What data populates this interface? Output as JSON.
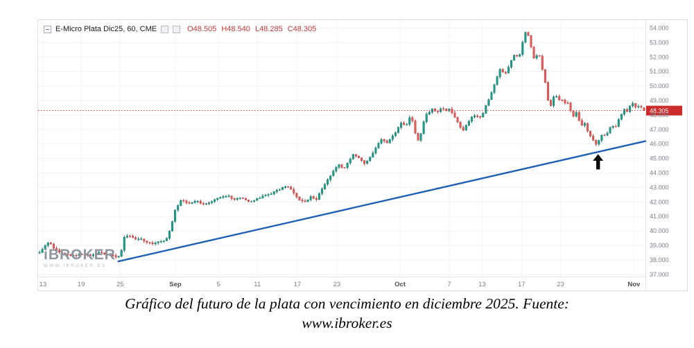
{
  "chart": {
    "legend": {
      "symbol": "E-Micro Plata Dic25, 60, CME",
      "ohlc": [
        {
          "label": "O",
          "value": "48.505"
        },
        {
          "label": "H",
          "value": "48.540"
        },
        {
          "label": "L",
          "value": "48.285"
        },
        {
          "label": "C",
          "value": "48.305"
        }
      ]
    },
    "watermark": {
      "brand": "iBROKER",
      "url": "WWW.IBROKER.ES"
    }
  },
  "caption": {
    "line1": "Gráfico del futuro de la plata con vencimiento en diciembre 2025. Fuente:",
    "line2": "www.ibroker.es"
  },
  "chart_data": {
    "type": "candlestick",
    "title": "E-Micro Plata Dic25, 60, CME",
    "timeframe": "60",
    "exchange": "CME",
    "ylim": [
      36.85,
      54.55
    ],
    "grid": true,
    "current_price": 48.305,
    "current_price_label": "48.305",
    "last_candle": {
      "open": 48.505,
      "high": 48.54,
      "low": 48.285,
      "close": 48.305
    },
    "candle_count": 215,
    "colors": {
      "up": "#1f9d8b",
      "up_border": "#146c5e",
      "down": "#e25b5b",
      "down_border": "#b23b3b",
      "grid": "#f0f1f4",
      "vgrid": "#f3f4f6",
      "axis_text": "#7b7f8a",
      "month_text": "#4a4e57",
      "dotted_line": "#e53935",
      "price_tag": "#cc2b2b",
      "trendline": "#1f5fb4",
      "arrow": "#0a0a0a",
      "axis_border": "#e3e5e9"
    },
    "y_ticks": [
      {
        "price": 54,
        "label": "54.000"
      },
      {
        "price": 53,
        "label": "53.000"
      },
      {
        "price": 52,
        "label": "52.000"
      },
      {
        "price": 51,
        "label": "51.000"
      },
      {
        "price": 50,
        "label": "50.000"
      },
      {
        "price": 49,
        "label": "49.000"
      },
      {
        "price": 48,
        "label": "48.000"
      },
      {
        "price": 47,
        "label": "47.000"
      },
      {
        "price": 46,
        "label": "46.000"
      },
      {
        "price": 45,
        "label": "45.000"
      },
      {
        "price": 44,
        "label": "44.000"
      },
      {
        "price": 43,
        "label": "43.000"
      },
      {
        "price": 42,
        "label": "42.000"
      },
      {
        "price": 41,
        "label": "41.000"
      },
      {
        "price": 40,
        "label": "40.000"
      },
      {
        "price": 39,
        "label": "39.000"
      },
      {
        "price": 38,
        "label": "38.000"
      },
      {
        "price": 37,
        "label": "37.000"
      }
    ],
    "x_ticks": [
      {
        "label": "13",
        "f": 0.008
      },
      {
        "label": "19",
        "f": 0.071
      },
      {
        "label": "25",
        "f": 0.135
      },
      {
        "label": "Sep",
        "f": 0.226,
        "bold": true
      },
      {
        "label": "5",
        "f": 0.297
      },
      {
        "label": "11",
        "f": 0.361
      },
      {
        "label": "17",
        "f": 0.427
      },
      {
        "label": "23",
        "f": 0.492
      },
      {
        "label": "Oct",
        "f": 0.596,
        "bold": true
      },
      {
        "label": "7",
        "f": 0.677
      },
      {
        "label": "13",
        "f": 0.731
      },
      {
        "label": "17",
        "f": 0.796
      },
      {
        "label": "23",
        "f": 0.86
      },
      {
        "label": "Nov",
        "f": 0.981,
        "bold": true
      }
    ],
    "trendline": {
      "from": {
        "f": 0.132,
        "price": 37.9
      },
      "to": {
        "f": 1.0,
        "price": 46.2
      }
    },
    "annotations": [
      {
        "type": "arrow-up",
        "f": 0.922,
        "price": 45.3
      }
    ],
    "close_path": [
      [
        0,
        38.4
      ],
      [
        0.006,
        38.7
      ],
      [
        0.012,
        39.0
      ],
      [
        0.018,
        39.2
      ],
      [
        0.024,
        38.9
      ],
      [
        0.032,
        38.6
      ],
      [
        0.042,
        38.4
      ],
      [
        0.055,
        38.3
      ],
      [
        0.07,
        38.35
      ],
      [
        0.085,
        38.3
      ],
      [
        0.1,
        38.5
      ],
      [
        0.115,
        38.35
      ],
      [
        0.128,
        38.2
      ],
      [
        0.136,
        38.25
      ],
      [
        0.14,
        39.55
      ],
      [
        0.148,
        39.7
      ],
      [
        0.158,
        39.5
      ],
      [
        0.17,
        39.4
      ],
      [
        0.182,
        39.2
      ],
      [
        0.19,
        39.1
      ],
      [
        0.2,
        39.25
      ],
      [
        0.21,
        39.4
      ],
      [
        0.218,
        40.1
      ],
      [
        0.226,
        41.5
      ],
      [
        0.236,
        42.15
      ],
      [
        0.248,
        41.9
      ],
      [
        0.26,
        42.1
      ],
      [
        0.272,
        41.85
      ],
      [
        0.285,
        42.05
      ],
      [
        0.3,
        42.3
      ],
      [
        0.312,
        42.45
      ],
      [
        0.322,
        42.15
      ],
      [
        0.335,
        42.3
      ],
      [
        0.348,
        42.05
      ],
      [
        0.36,
        42.2
      ],
      [
        0.372,
        42.45
      ],
      [
        0.384,
        42.6
      ],
      [
        0.398,
        42.9
      ],
      [
        0.408,
        43.1
      ],
      [
        0.418,
        42.8
      ],
      [
        0.428,
        42.2
      ],
      [
        0.438,
        41.95
      ],
      [
        0.448,
        42.35
      ],
      [
        0.458,
        42.2
      ],
      [
        0.468,
        42.9
      ],
      [
        0.478,
        43.6
      ],
      [
        0.488,
        44.3
      ],
      [
        0.495,
        44.6
      ],
      [
        0.503,
        44.3
      ],
      [
        0.512,
        44.9
      ],
      [
        0.52,
        45.35
      ],
      [
        0.528,
        45.0
      ],
      [
        0.538,
        44.6
      ],
      [
        0.548,
        45.2
      ],
      [
        0.558,
        45.9
      ],
      [
        0.566,
        46.35
      ],
      [
        0.574,
        46.1
      ],
      [
        0.582,
        46.45
      ],
      [
        0.59,
        46.9
      ],
      [
        0.598,
        47.5
      ],
      [
        0.606,
        47.2
      ],
      [
        0.612,
        47.9
      ],
      [
        0.617,
        47.6
      ],
      [
        0.622,
        46.5
      ],
      [
        0.627,
        46.1
      ],
      [
        0.632,
        47.1
      ],
      [
        0.637,
        47.9
      ],
      [
        0.643,
        48.2
      ],
      [
        0.65,
        48.45
      ],
      [
        0.657,
        48.2
      ],
      [
        0.664,
        48.5
      ],
      [
        0.671,
        48.3
      ],
      [
        0.678,
        48.45
      ],
      [
        0.685,
        47.9
      ],
      [
        0.692,
        47.4
      ],
      [
        0.699,
        46.95
      ],
      [
        0.705,
        47.3
      ],
      [
        0.712,
        47.75
      ],
      [
        0.719,
        48.0
      ],
      [
        0.726,
        47.8
      ],
      [
        0.732,
        48.1
      ],
      [
        0.738,
        48.7
      ],
      [
        0.744,
        49.3
      ],
      [
        0.75,
        50.0
      ],
      [
        0.756,
        50.7
      ],
      [
        0.762,
        51.3
      ],
      [
        0.768,
        50.7
      ],
      [
        0.774,
        51.3
      ],
      [
        0.78,
        51.9
      ],
      [
        0.786,
        52.3
      ],
      [
        0.791,
        51.8
      ],
      [
        0.796,
        52.8
      ],
      [
        0.801,
        53.5
      ],
      [
        0.804,
        53.85
      ],
      [
        0.808,
        53.3
      ],
      [
        0.813,
        52.5
      ],
      [
        0.818,
        51.7
      ],
      [
        0.822,
        52.3
      ],
      [
        0.827,
        51.9
      ],
      [
        0.831,
        51.0
      ],
      [
        0.836,
        50.0
      ],
      [
        0.84,
        48.9
      ],
      [
        0.843,
        48.4
      ],
      [
        0.847,
        49.1
      ],
      [
        0.852,
        49.45
      ],
      [
        0.856,
        49.0
      ],
      [
        0.861,
        49.2
      ],
      [
        0.866,
        48.8
      ],
      [
        0.871,
        48.95
      ],
      [
        0.876,
        48.4
      ],
      [
        0.881,
        47.95
      ],
      [
        0.886,
        48.15
      ],
      [
        0.891,
        47.6
      ],
      [
        0.896,
        47.2
      ],
      [
        0.9,
        47.45
      ],
      [
        0.905,
        46.9
      ],
      [
        0.91,
        46.45
      ],
      [
        0.915,
        46.15
      ],
      [
        0.92,
        45.9
      ],
      [
        0.925,
        46.35
      ],
      [
        0.93,
        46.75
      ],
      [
        0.935,
        46.5
      ],
      [
        0.94,
        47.05
      ],
      [
        0.945,
        47.3
      ],
      [
        0.95,
        47.1
      ],
      [
        0.955,
        47.65
      ],
      [
        0.96,
        48.05
      ],
      [
        0.965,
        48.45
      ],
      [
        0.97,
        48.2
      ],
      [
        0.975,
        48.65
      ],
      [
        0.98,
        48.85
      ],
      [
        0.985,
        48.5
      ],
      [
        0.99,
        48.7
      ],
      [
        0.995,
        48.45
      ],
      [
        1,
        48.305
      ]
    ]
  }
}
